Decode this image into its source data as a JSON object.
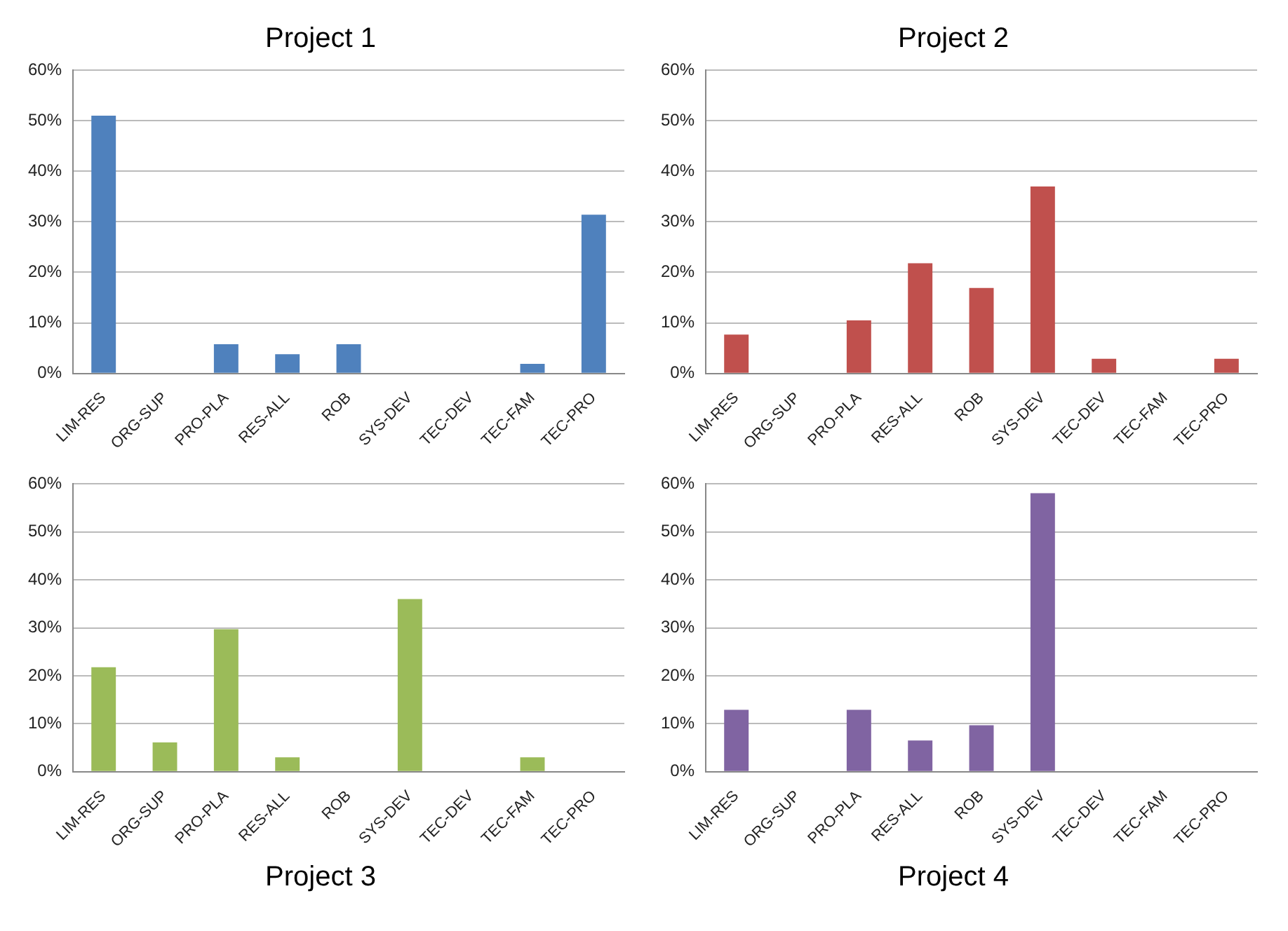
{
  "chart_data": [
    {
      "type": "bar",
      "title": "Project 1",
      "categories": [
        "LIM-RES",
        "ORG-SUP",
        "PRO-PLA",
        "RES-ALL",
        "ROB",
        "SYS-DEV",
        "TEC-DEV",
        "TEC-FAM",
        "TEC-PRO"
      ],
      "values": [
        51,
        0,
        5.8,
        3.8,
        5.8,
        0,
        0,
        1.9,
        31.4
      ],
      "color": "#4f81bd",
      "ylim": [
        0,
        60
      ],
      "yticks": [
        {
          "value": 0,
          "label": "0%"
        },
        {
          "value": 10,
          "label": "10%"
        },
        {
          "value": 20,
          "label": "20%"
        },
        {
          "value": 30,
          "label": "30%"
        },
        {
          "value": 40,
          "label": "40%"
        },
        {
          "value": 50,
          "label": "50%"
        },
        {
          "value": 60,
          "label": "60%"
        }
      ],
      "grid": "y",
      "legend": false
    },
    {
      "type": "bar",
      "title": "Project 2",
      "categories": [
        "LIM-RES",
        "ORG-SUP",
        "PRO-PLA",
        "RES-ALL",
        "ROB",
        "SYS-DEV",
        "TEC-DEV",
        "TEC-FAM",
        "TEC-PRO"
      ],
      "values": [
        7.7,
        0,
        10.5,
        21.8,
        16.9,
        37,
        2.9,
        0,
        2.9
      ],
      "color": "#c0504d",
      "ylim": [
        0,
        60
      ],
      "yticks": [
        {
          "value": 0,
          "label": "0%"
        },
        {
          "value": 10,
          "label": "10%"
        },
        {
          "value": 20,
          "label": "20%"
        },
        {
          "value": 30,
          "label": "30%"
        },
        {
          "value": 40,
          "label": "40%"
        },
        {
          "value": 50,
          "label": "50%"
        },
        {
          "value": 60,
          "label": "60%"
        }
      ],
      "grid": "y",
      "legend": false
    },
    {
      "type": "bar",
      "title": "Project 3",
      "categories": [
        "LIM-RES",
        "ORG-SUP",
        "PRO-PLA",
        "RES-ALL",
        "ROB",
        "SYS-DEV",
        "TEC-DEV",
        "TEC-FAM",
        "TEC-PRO"
      ],
      "values": [
        21.8,
        6.1,
        29.7,
        3.0,
        0,
        36,
        0,
        3.0,
        0
      ],
      "color": "#9bbb59",
      "ylim": [
        0,
        60
      ],
      "yticks": [
        {
          "value": 0,
          "label": "0%"
        },
        {
          "value": 10,
          "label": "10%"
        },
        {
          "value": 20,
          "label": "20%"
        },
        {
          "value": 30,
          "label": "30%"
        },
        {
          "value": 40,
          "label": "40%"
        },
        {
          "value": 50,
          "label": "50%"
        },
        {
          "value": 60,
          "label": "60%"
        }
      ],
      "grid": "y",
      "legend": false
    },
    {
      "type": "bar",
      "title": "Project 4",
      "categories": [
        "LIM-RES",
        "ORG-SUP",
        "PRO-PLA",
        "RES-ALL",
        "ROB",
        "SYS-DEV",
        "TEC-DEV",
        "TEC-FAM",
        "TEC-PRO"
      ],
      "values": [
        12.9,
        0,
        12.9,
        6.5,
        9.7,
        58.1,
        0,
        0,
        0
      ],
      "color": "#8064a2",
      "ylim": [
        0,
        60
      ],
      "yticks": [
        {
          "value": 0,
          "label": "0%"
        },
        {
          "value": 10,
          "label": "10%"
        },
        {
          "value": 20,
          "label": "20%"
        },
        {
          "value": 30,
          "label": "30%"
        },
        {
          "value": 40,
          "label": "40%"
        },
        {
          "value": 50,
          "label": "50%"
        },
        {
          "value": 60,
          "label": "60%"
        }
      ],
      "grid": "y",
      "legend": false
    }
  ]
}
